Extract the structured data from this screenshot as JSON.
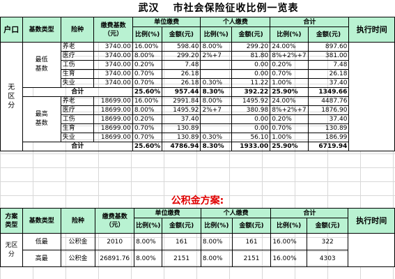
{
  "title": {
    "city": "武汉",
    "main": "市社会保险征收比例一览表"
  },
  "social": {
    "headers": {
      "hukou": "户口",
      "base_type": "基数类型",
      "insurance": "险种",
      "base": "缴费基数（元）",
      "employer": "单位缴费",
      "personal": "个人缴费",
      "total": "合计",
      "rate": "比例(%)",
      "amount": "金额(元)",
      "exec_time": "执行时间"
    },
    "hukou_value": "无区分",
    "groups": [
      {
        "label": "最低基数",
        "rows": [
          {
            "ins": "养老",
            "base": "3740.00",
            "er": "16.00%",
            "ea": "598.40",
            "pr": "8.00%",
            "pa": "299.20",
            "tr": "24.00%",
            "ta": "897.60"
          },
          {
            "ins": "医疗",
            "base": "3740.00",
            "er": "8.00%",
            "ea": "299.20",
            "pr": "2%+7",
            "pa": "81.80",
            "tr": "8%+2%+7",
            "ta": "381.00"
          },
          {
            "ins": "工伤",
            "base": "3740.00",
            "er": "0.20%",
            "ea": "7.48",
            "pr": "",
            "pa": "0.00",
            "tr": "0.20%",
            "ta": "7.48"
          },
          {
            "ins": "生育",
            "base": "3740.00",
            "er": "0.70%",
            "ea": "26.18",
            "pr": "",
            "pa": "0.00",
            "tr": "0.70%",
            "ta": "26.18"
          },
          {
            "ins": "失业",
            "base": "3740.00",
            "er": "0.70%",
            "ea": "26.18",
            "pr": "0.30%",
            "pa": "11.22",
            "tr": "1.00%",
            "ta": "37.40"
          }
        ],
        "total": {
          "label": "合计",
          "er": "25.60%",
          "ea": "957.44",
          "pr": "8.30%",
          "pa": "392.22",
          "tr": "25.90%",
          "ta": "1349.66"
        }
      },
      {
        "label": "最高基数",
        "rows": [
          {
            "ins": "养老",
            "base": "18699.00",
            "er": "16.00%",
            "ea": "2991.84",
            "pr": "8.00%",
            "pa": "1495.92",
            "tr": "24.00%",
            "ta": "4487.76"
          },
          {
            "ins": "医疗",
            "base": "18699.00",
            "er": "8.00%",
            "ea": "1495.92",
            "pr": "2%+7",
            "pa": "380.98",
            "tr": "8%+2%+7",
            "ta": "1876.90"
          },
          {
            "ins": "工伤",
            "base": "18699.00",
            "er": "0.20%",
            "ea": "37.40",
            "pr": "",
            "pa": "0.00",
            "tr": "0.20%",
            "ta": "37.40"
          },
          {
            "ins": "生育",
            "base": "18699.00",
            "er": "0.70%",
            "ea": "130.89",
            "pr": "",
            "pa": "0.00",
            "tr": "0.70%",
            "ta": "130.89"
          },
          {
            "ins": "失业",
            "base": "18699.00",
            "er": "0.70%",
            "ea": "130.89",
            "pr": "0.30%",
            "pa": "56.10",
            "tr": "1.00%",
            "ta": "186.99"
          }
        ],
        "total": {
          "label": "合计",
          "er": "25.60%",
          "ea": "4786.94",
          "pr": "8.30%",
          "pa": "1933.00",
          "tr": "25.90%",
          "ta": "6719.94"
        }
      }
    ]
  },
  "fund": {
    "title": "公积金方案:",
    "headers": {
      "plan_type": "方案类型",
      "base_type": "基数类型",
      "insurance": "险种",
      "base": "缴费基数（元）",
      "employer": "单位缴费",
      "personal": "个人缴费",
      "total": "合计",
      "rate": "比例(%)",
      "amount": "金额(元)",
      "exec_time": "执行时间"
    },
    "plan_value": "无区分",
    "rows": [
      {
        "type": "低最",
        "ins": "公积金",
        "base": "2010",
        "er": "8.00%",
        "ea": "161",
        "pr": "8.00%",
        "pa": "161",
        "tr": "16.00%",
        "ta": "322"
      },
      {
        "type": "高最",
        "ins": "公积金",
        "base": "26891.76",
        "er": "8.00%",
        "ea": "2151",
        "pr": "8.00%",
        "pa": "2151",
        "tr": "16.00%",
        "ta": "4303"
      }
    ]
  },
  "colors": {
    "header_bg": "#b9f2d2",
    "fund_title": "#e00000"
  }
}
